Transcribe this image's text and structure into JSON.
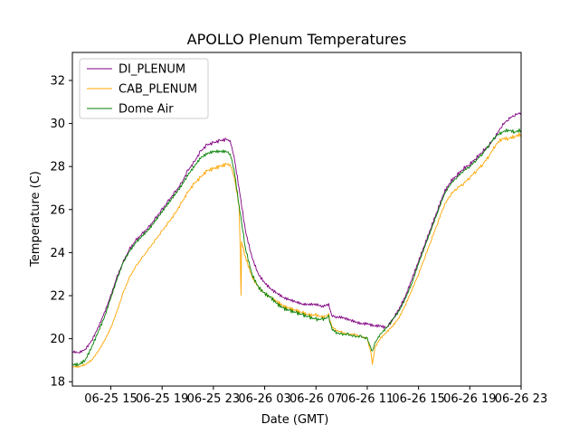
{
  "chart_data": {
    "type": "line",
    "title": "APOLLO Plenum Temperatures",
    "xlabel": "Date (GMT)",
    "ylabel": "Temperature (C)",
    "xlim": [
      12.0,
      47.0
    ],
    "ylim": [
      17.8,
      33.3
    ],
    "x_ticks": [
      {
        "value": 15,
        "label": "06-25 15"
      },
      {
        "value": 19,
        "label": "06-25 19"
      },
      {
        "value": 23,
        "label": "06-25 23"
      },
      {
        "value": 27,
        "label": "06-26 03"
      },
      {
        "value": 31,
        "label": "06-26 07"
      },
      {
        "value": 35,
        "label": "06-26 11"
      },
      {
        "value": 39,
        "label": "06-26 15"
      },
      {
        "value": 43,
        "label": "06-26 19"
      },
      {
        "value": 47,
        "label": "06-26 23"
      }
    ],
    "y_ticks": [
      {
        "value": 18,
        "label": "18"
      },
      {
        "value": 20,
        "label": "20"
      },
      {
        "value": 22,
        "label": "22"
      },
      {
        "value": 24,
        "label": "24"
      },
      {
        "value": 26,
        "label": "26"
      },
      {
        "value": 28,
        "label": "28"
      },
      {
        "value": 30,
        "label": "30"
      },
      {
        "value": 32,
        "label": "32"
      }
    ],
    "legend_position": "top-left",
    "series": [
      {
        "name": "DI_PLENUM",
        "color": "#800080",
        "points": [
          [
            12.0,
            19.4
          ],
          [
            12.5,
            19.35
          ],
          [
            13.0,
            19.5
          ],
          [
            13.5,
            19.9
          ],
          [
            14.0,
            20.5
          ],
          [
            14.5,
            21.2
          ],
          [
            15.0,
            22.0
          ],
          [
            15.5,
            22.9
          ],
          [
            16.0,
            23.6
          ],
          [
            16.5,
            24.2
          ],
          [
            17.0,
            24.6
          ],
          [
            17.5,
            24.9
          ],
          [
            18.0,
            25.2
          ],
          [
            18.5,
            25.6
          ],
          [
            19.0,
            26.0
          ],
          [
            19.5,
            26.4
          ],
          [
            20.0,
            26.8
          ],
          [
            20.5,
            27.2
          ],
          [
            21.0,
            27.8
          ],
          [
            21.5,
            28.2
          ],
          [
            22.0,
            28.7
          ],
          [
            22.5,
            29.0
          ],
          [
            23.0,
            29.1
          ],
          [
            23.5,
            29.2
          ],
          [
            24.0,
            29.25
          ],
          [
            24.3,
            29.2
          ],
          [
            24.6,
            28.5
          ],
          [
            25.0,
            27.0
          ],
          [
            25.5,
            25.0
          ],
          [
            26.0,
            23.8
          ],
          [
            26.5,
            23.0
          ],
          [
            27.0,
            22.6
          ],
          [
            27.5,
            22.3
          ],
          [
            28.0,
            22.1
          ],
          [
            28.5,
            21.9
          ],
          [
            29.0,
            21.8
          ],
          [
            29.5,
            21.7
          ],
          [
            30.0,
            21.6
          ],
          [
            30.5,
            21.6
          ],
          [
            31.0,
            21.6
          ],
          [
            31.5,
            21.5
          ],
          [
            32.0,
            21.6
          ],
          [
            32.2,
            21.1
          ],
          [
            32.5,
            21.0
          ],
          [
            33.0,
            21.0
          ],
          [
            33.5,
            20.9
          ],
          [
            34.0,
            20.8
          ],
          [
            34.5,
            20.7
          ],
          [
            35.0,
            20.7
          ],
          [
            35.5,
            20.6
          ],
          [
            36.0,
            20.6
          ],
          [
            36.5,
            20.5
          ],
          [
            37.0,
            20.9
          ],
          [
            37.5,
            21.4
          ],
          [
            38.0,
            22.0
          ],
          [
            38.5,
            22.8
          ],
          [
            39.0,
            23.6
          ],
          [
            39.5,
            24.4
          ],
          [
            40.0,
            25.2
          ],
          [
            40.5,
            26.0
          ],
          [
            41.0,
            26.8
          ],
          [
            41.5,
            27.3
          ],
          [
            42.0,
            27.6
          ],
          [
            42.5,
            27.9
          ],
          [
            43.0,
            28.1
          ],
          [
            43.5,
            28.4
          ],
          [
            44.0,
            28.7
          ],
          [
            44.5,
            29.0
          ],
          [
            45.0,
            29.4
          ],
          [
            45.5,
            29.9
          ],
          [
            46.0,
            30.2
          ],
          [
            46.5,
            30.4
          ],
          [
            47.0,
            30.5
          ]
        ]
      },
      {
        "name": "CAB_PLENUM",
        "color": "#ffa500",
        "points": [
          [
            12.0,
            18.7
          ],
          [
            12.5,
            18.7
          ],
          [
            13.0,
            18.8
          ],
          [
            13.5,
            19.0
          ],
          [
            14.0,
            19.4
          ],
          [
            14.5,
            19.9
          ],
          [
            15.0,
            20.5
          ],
          [
            15.5,
            21.3
          ],
          [
            16.0,
            22.2
          ],
          [
            16.5,
            22.9
          ],
          [
            17.0,
            23.4
          ],
          [
            17.5,
            23.8
          ],
          [
            18.0,
            24.2
          ],
          [
            18.5,
            24.6
          ],
          [
            19.0,
            25.0
          ],
          [
            19.5,
            25.4
          ],
          [
            20.0,
            25.8
          ],
          [
            20.5,
            26.3
          ],
          [
            21.0,
            26.8
          ],
          [
            21.5,
            27.2
          ],
          [
            22.0,
            27.5
          ],
          [
            22.5,
            27.8
          ],
          [
            23.0,
            27.9
          ],
          [
            23.5,
            28.0
          ],
          [
            24.0,
            28.1
          ],
          [
            24.3,
            28.1
          ],
          [
            24.6,
            27.6
          ],
          [
            25.0,
            26.2
          ],
          [
            25.1,
            24.0
          ],
          [
            25.15,
            22.0
          ],
          [
            25.2,
            24.5
          ],
          [
            25.5,
            23.8
          ],
          [
            26.0,
            22.9
          ],
          [
            26.5,
            22.4
          ],
          [
            27.0,
            22.1
          ],
          [
            27.5,
            21.9
          ],
          [
            28.0,
            21.7
          ],
          [
            28.5,
            21.5
          ],
          [
            29.0,
            21.4
          ],
          [
            29.5,
            21.3
          ],
          [
            30.0,
            21.2
          ],
          [
            30.5,
            21.1
          ],
          [
            31.0,
            21.1
          ],
          [
            31.5,
            21.0
          ],
          [
            32.0,
            21.1
          ],
          [
            32.2,
            20.6
          ],
          [
            32.5,
            20.4
          ],
          [
            33.0,
            20.3
          ],
          [
            33.5,
            20.2
          ],
          [
            34.0,
            20.2
          ],
          [
            34.5,
            20.1
          ],
          [
            35.0,
            20.0
          ],
          [
            35.3,
            19.3
          ],
          [
            35.4,
            18.8
          ],
          [
            35.6,
            19.6
          ],
          [
            36.0,
            20.0
          ],
          [
            36.5,
            20.3
          ],
          [
            37.0,
            20.6
          ],
          [
            37.5,
            21.0
          ],
          [
            38.0,
            21.6
          ],
          [
            38.5,
            22.3
          ],
          [
            39.0,
            23.0
          ],
          [
            39.5,
            23.8
          ],
          [
            40.0,
            24.6
          ],
          [
            40.5,
            25.4
          ],
          [
            41.0,
            26.2
          ],
          [
            41.5,
            26.7
          ],
          [
            42.0,
            27.0
          ],
          [
            42.5,
            27.2
          ],
          [
            43.0,
            27.5
          ],
          [
            43.5,
            27.8
          ],
          [
            44.0,
            28.1
          ],
          [
            44.5,
            28.5
          ],
          [
            45.0,
            29.0
          ],
          [
            45.5,
            29.3
          ],
          [
            46.0,
            29.3
          ],
          [
            46.5,
            29.4
          ],
          [
            47.0,
            29.5
          ]
        ]
      },
      {
        "name": "Dome Air",
        "color": "#008000",
        "points": [
          [
            12.0,
            18.8
          ],
          [
            12.5,
            18.8
          ],
          [
            13.0,
            19.0
          ],
          [
            13.5,
            19.6
          ],
          [
            14.0,
            20.3
          ],
          [
            14.5,
            21.0
          ],
          [
            15.0,
            21.9
          ],
          [
            15.5,
            22.8
          ],
          [
            16.0,
            23.6
          ],
          [
            16.5,
            24.1
          ],
          [
            17.0,
            24.5
          ],
          [
            17.5,
            24.8
          ],
          [
            18.0,
            25.1
          ],
          [
            18.5,
            25.5
          ],
          [
            19.0,
            25.9
          ],
          [
            19.5,
            26.3
          ],
          [
            20.0,
            26.7
          ],
          [
            20.5,
            27.1
          ],
          [
            21.0,
            27.6
          ],
          [
            21.5,
            28.0
          ],
          [
            22.0,
            28.4
          ],
          [
            22.5,
            28.6
          ],
          [
            23.0,
            28.7
          ],
          [
            23.5,
            28.7
          ],
          [
            24.0,
            28.7
          ],
          [
            24.3,
            28.6
          ],
          [
            24.6,
            27.9
          ],
          [
            25.0,
            26.2
          ],
          [
            25.2,
            25.4
          ],
          [
            25.5,
            24.2
          ],
          [
            26.0,
            23.0
          ],
          [
            26.5,
            22.4
          ],
          [
            27.0,
            22.1
          ],
          [
            27.5,
            21.9
          ],
          [
            28.0,
            21.6
          ],
          [
            28.5,
            21.4
          ],
          [
            29.0,
            21.3
          ],
          [
            29.5,
            21.2
          ],
          [
            30.0,
            21.1
          ],
          [
            30.5,
            21.0
          ],
          [
            31.0,
            20.9
          ],
          [
            31.5,
            20.9
          ],
          [
            32.0,
            21.0
          ],
          [
            32.2,
            20.5
          ],
          [
            32.5,
            20.3
          ],
          [
            33.0,
            20.2
          ],
          [
            33.5,
            20.2
          ],
          [
            34.0,
            20.1
          ],
          [
            34.5,
            20.1
          ],
          [
            35.0,
            20.0
          ],
          [
            35.4,
            19.4
          ],
          [
            35.6,
            19.8
          ],
          [
            36.0,
            20.2
          ],
          [
            36.5,
            20.5
          ],
          [
            37.0,
            20.9
          ],
          [
            37.5,
            21.3
          ],
          [
            38.0,
            21.9
          ],
          [
            38.5,
            22.6
          ],
          [
            39.0,
            23.5
          ],
          [
            39.5,
            24.3
          ],
          [
            40.0,
            25.1
          ],
          [
            40.5,
            25.9
          ],
          [
            41.0,
            26.7
          ],
          [
            41.5,
            27.2
          ],
          [
            42.0,
            27.5
          ],
          [
            42.5,
            27.8
          ],
          [
            43.0,
            28.0
          ],
          [
            43.5,
            28.3
          ],
          [
            44.0,
            28.6
          ],
          [
            44.5,
            29.0
          ],
          [
            45.0,
            29.4
          ],
          [
            45.5,
            29.6
          ],
          [
            46.0,
            29.7
          ],
          [
            46.5,
            29.6
          ],
          [
            47.0,
            29.7
          ]
        ]
      }
    ]
  }
}
